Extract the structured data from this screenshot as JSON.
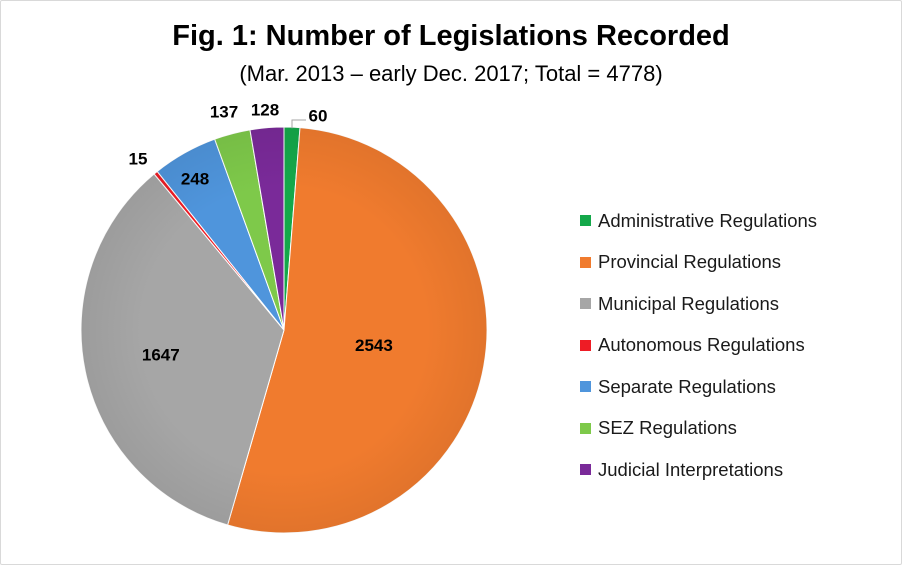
{
  "chart_data": {
    "type": "pie",
    "title": "Fig. 1: Number of Legislations Recorded",
    "subtitle": "(Mar. 2013 – early Dec. 2017; Total = 4778)",
    "categories": [
      "Administrative Regulations",
      "Provincial Regulations",
      "Municipal Regulations",
      "Autonomous Regulations",
      "Separate Regulations",
      "SEZ Regulations",
      "Judicial Interpretations"
    ],
    "values": [
      60,
      2543,
      1647,
      15,
      248,
      137,
      128
    ],
    "labels": [
      "60",
      "2543",
      "1647",
      "15",
      "248",
      "137",
      "128"
    ],
    "colors": [
      "#14a84a",
      "#f07b2e",
      "#a6a6a6",
      "#ee1c25",
      "#4f95dc",
      "#7ec94a",
      "#7a2a99"
    ],
    "total": 4778,
    "legend_position": "right"
  }
}
